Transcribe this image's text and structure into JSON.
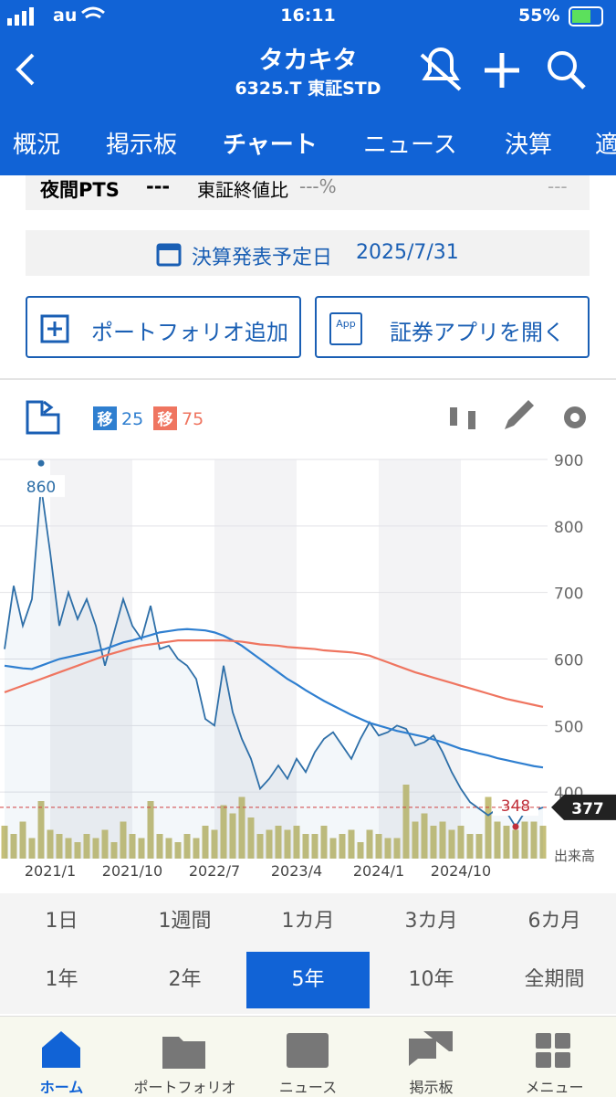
{
  "status_bar": {
    "carrier": "au",
    "time": "16:11",
    "battery": "55%"
  },
  "header": {
    "title": "タカキタ",
    "subtitle": "6325.T 東証STD"
  },
  "tabs": {
    "items": [
      "概況",
      "掲示板",
      "チャート",
      "ニュース",
      "決算",
      "適"
    ],
    "selected": "チャート"
  },
  "pts_row": {
    "label": "夜間PTS",
    "value": "---",
    "compare_label": "東証終値比",
    "compare_value": "---%",
    "right_value": "---"
  },
  "earnings": {
    "label": "決算発表予定日",
    "date": "2025/7/31"
  },
  "buttons": {
    "portfolio": "ポートフォリオ追加",
    "app_icon": "App",
    "open_app": "証券アプリを開く"
  },
  "chart_data": {
    "type": "line",
    "ma_badge": "移",
    "categories": [
      null,
      null,
      null,
      null,
      null,
      "2021/1",
      null,
      null,
      null,
      null,
      null,
      null,
      null,
      null,
      "2021/10",
      null,
      null,
      null,
      null,
      null,
      null,
      null,
      null,
      "2022/7",
      null,
      null,
      null,
      null,
      null,
      null,
      null,
      null,
      "2023/4",
      null,
      null,
      null,
      null,
      null,
      null,
      null,
      null,
      "2024/1",
      null,
      null,
      null,
      null,
      null,
      null,
      null,
      null,
      "2024/10",
      null,
      null,
      null,
      null,
      null,
      null,
      null,
      null,
      null
    ],
    "series": [
      {
        "color": "#2e6fa8",
        "values": [
          615,
          710,
          650,
          690,
          860,
          760,
          650,
          700,
          660,
          690,
          650,
          590,
          640,
          690,
          650,
          630,
          680,
          615,
          620,
          600,
          590,
          570,
          510,
          500,
          590,
          520,
          480,
          450,
          405,
          420,
          440,
          420,
          450,
          430,
          460,
          480,
          490,
          470,
          450,
          480,
          505,
          485,
          490,
          500,
          495,
          470,
          475,
          485,
          460,
          430,
          405,
          385,
          375,
          365,
          375,
          370,
          348,
          370,
          372,
          377
        ]
      },
      {
        "name": "25",
        "color": "#2f7fd0",
        "values": [
          590,
          588,
          586,
          585,
          590,
          595,
          600,
          603,
          606,
          609,
          612,
          615,
          620,
          625,
          628,
          632,
          636,
          640,
          642,
          644,
          645,
          644,
          643,
          640,
          635,
          628,
          620,
          610,
          600,
          590,
          580,
          570,
          562,
          553,
          545,
          537,
          530,
          523,
          516,
          510,
          504,
          500,
          496,
          492,
          489,
          486,
          483,
          479,
          475,
          470,
          465,
          462,
          458,
          455,
          451,
          448,
          445,
          442,
          439,
          437
        ]
      },
      {
        "name": "75",
        "color": "#ef7560",
        "values": [
          550,
          555,
          560,
          565,
          570,
          575,
          580,
          585,
          590,
          595,
          600,
          605,
          609,
          613,
          617,
          620,
          622,
          624,
          626,
          628,
          628,
          628,
          628,
          628,
          628,
          627,
          626,
          624,
          622,
          621,
          620,
          618,
          617,
          616,
          615,
          613,
          612,
          611,
          610,
          608,
          605,
          600,
          595,
          590,
          585,
          580,
          576,
          572,
          568,
          564,
          560,
          556,
          552,
          548,
          544,
          540,
          537,
          534,
          531,
          528
        ]
      }
    ],
    "volume": {
      "label": "出来高",
      "color": "#c5bf7a",
      "values": [
        40,
        30,
        45,
        25,
        70,
        35,
        30,
        25,
        20,
        30,
        25,
        35,
        20,
        45,
        30,
        25,
        70,
        30,
        25,
        20,
        30,
        25,
        40,
        35,
        65,
        55,
        75,
        50,
        30,
        35,
        40,
        35,
        40,
        30,
        30,
        40,
        25,
        30,
        35,
        20,
        35,
        30,
        25,
        25,
        90,
        45,
        55,
        40,
        45,
        35,
        40,
        30,
        30,
        75,
        45,
        40,
        35,
        45,
        45,
        40
      ]
    },
    "ylim": [
      300,
      900
    ],
    "yticks": [
      400,
      500,
      600,
      700,
      800,
      900
    ],
    "grid": true
  },
  "ranges": {
    "row1": [
      "1日",
      "1週間",
      "1カ月",
      "3カ月",
      "6カ月"
    ],
    "row2": [
      "1年",
      "2年",
      "5年",
      "10年",
      "全期間"
    ],
    "selected": "5年"
  },
  "bottom_nav": {
    "items": [
      "ホーム",
      "ポートフォリオ",
      "ニュース",
      "掲示板",
      "メニュー"
    ],
    "selected": "ホーム"
  }
}
